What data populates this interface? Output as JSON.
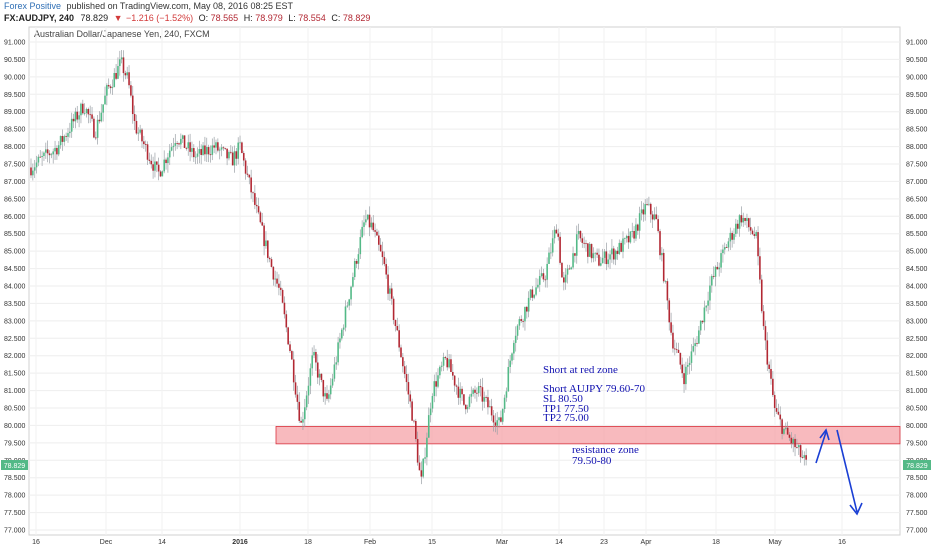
{
  "header": {
    "author": "Forex Positive",
    "published": "published on TradingView.com, May 08, 2016 08:25 EST",
    "symbol": "FX:AUDJPY, 240",
    "last": "78.829",
    "change": "−1.216 (−1.52%)",
    "o_label": "O:",
    "o_value": "78.565",
    "h_label": "H:",
    "h_value": "78.979",
    "l_label": "L:",
    "l_value": "78.554",
    "c_label": "C:",
    "c_value": "78.829"
  },
  "chart_title": "Australian Dollar/Japanese Yen, 240, FXCM",
  "chart_data": {
    "type": "candlestick",
    "title": "Australian Dollar/Japanese Yen, 240, FXCM",
    "ylim": [
      76.9,
      91.2
    ],
    "y_ticks": [
      "91.000",
      "90.500",
      "90.000",
      "89.500",
      "89.000",
      "88.500",
      "88.000",
      "87.500",
      "87.000",
      "86.500",
      "86.000",
      "85.500",
      "85.000",
      "84.500",
      "84.000",
      "83.500",
      "83.000",
      "82.500",
      "82.000",
      "81.500",
      "81.000",
      "80.500",
      "80.000",
      "79.500",
      "79.000",
      "78.500",
      "78.000",
      "77.500",
      "77.000"
    ],
    "x_ticks": [
      "16",
      "Dec",
      "14",
      "2016",
      "18",
      "Feb",
      "15",
      "Mar",
      "14",
      "23",
      "Apr",
      "18",
      "May",
      "16"
    ],
    "price_series": [
      [
        "Nov 09",
        87.4
      ],
      [
        "Nov 16",
        88.0
      ],
      [
        "Nov 22",
        89.2
      ],
      [
        "Nov 26",
        88.4
      ],
      [
        "Nov 30",
        89.6
      ],
      [
        "Dec 02",
        90.4
      ],
      [
        "Dec 06",
        89.9
      ],
      [
        "Dec 09",
        88.6
      ],
      [
        "Dec 13",
        87.2
      ],
      [
        "Dec 17",
        88.3
      ],
      [
        "Dec 21",
        87.7
      ],
      [
        "Dec 25",
        88.0
      ],
      [
        "Dec 29",
        87.6
      ],
      [
        "Jan 01",
        88.0
      ],
      [
        "Jan 03",
        87.4
      ],
      [
        "Jan 06",
        86.2
      ],
      [
        "Jan 10",
        84.6
      ],
      [
        "Jan 14",
        83.8
      ],
      [
        "Jan 17",
        82.2
      ],
      [
        "Jan 20",
        80.0
      ],
      [
        "Jan 24",
        82.0
      ],
      [
        "Jan 29",
        80.6
      ],
      [
        "Feb 01",
        84.6
      ],
      [
        "Feb 03",
        85.9
      ],
      [
        "Feb 05",
        85.7
      ],
      [
        "Feb 08",
        84.6
      ],
      [
        "Feb 10",
        82.5
      ],
      [
        "Feb 12",
        80.2
      ],
      [
        "Feb 13",
        78.3
      ],
      [
        "Feb 15",
        81.0
      ],
      [
        "Feb 18",
        81.9
      ],
      [
        "Feb 22",
        80.6
      ],
      [
        "Feb 25",
        81.0
      ],
      [
        "Feb 29",
        80.0
      ],
      [
        "Mar 03",
        82.6
      ],
      [
        "Mar 07",
        83.8
      ],
      [
        "Mar 11",
        84.3
      ],
      [
        "Mar 14",
        85.8
      ],
      [
        "Mar 16",
        83.9
      ],
      [
        "Mar 19",
        85.4
      ],
      [
        "Mar 23",
        84.7
      ],
      [
        "Mar 27",
        85.0
      ],
      [
        "Mar 31",
        85.4
      ],
      [
        "Apr 03",
        86.3
      ],
      [
        "Apr 07",
        85.9
      ],
      [
        "Apr 09",
        84.5
      ],
      [
        "Apr 12",
        82.5
      ],
      [
        "Apr 15",
        81.4
      ],
      [
        "Apr 19",
        82.5
      ],
      [
        "Apr 23",
        84.0
      ],
      [
        "Apr 26",
        85.2
      ],
      [
        "Apr 29",
        86.0
      ],
      [
        "May 01",
        85.4
      ],
      [
        "May 02",
        82.6
      ],
      [
        "May 04",
        80.4
      ],
      [
        "May 05",
        79.8
      ],
      [
        "May 06",
        79.4
      ],
      [
        "May 07",
        78.8
      ]
    ],
    "annotations": {
      "zone_label": "resistance zone",
      "zone_range": "79.50-80",
      "zone_low": 79.5,
      "zone_high": 80.0,
      "trade_title": "Short at red zone",
      "trade_lines": [
        "Short AUJPY 79.60-70",
        "SL 80.50",
        "TP1 77.50",
        "TP2 75.00"
      ]
    },
    "grid": true,
    "colors": {
      "up": "#53b987",
      "down": "#b22833",
      "wick": "#9aa0a6",
      "zone_fill": "#f5a3a8",
      "zone_stroke": "#d9343f",
      "text_note": "#1010b0",
      "arrow": "#1a3fd4",
      "price_tag": "#53b987"
    }
  }
}
